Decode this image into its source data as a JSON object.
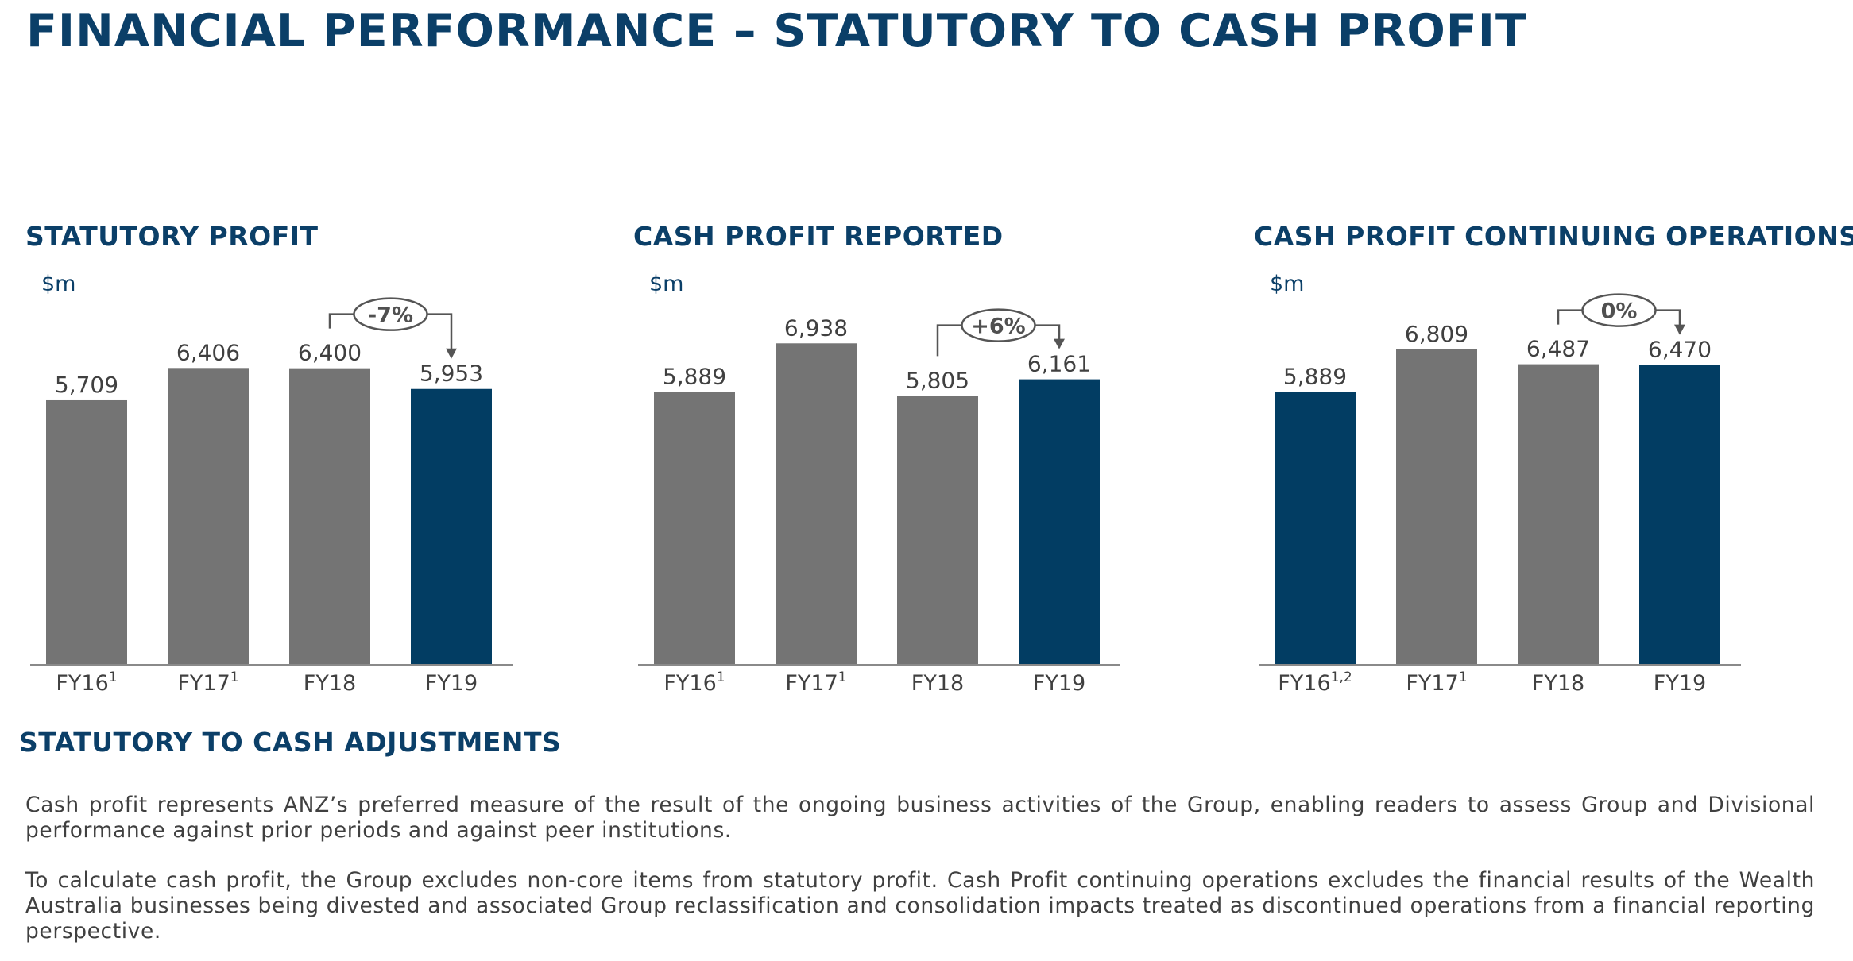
{
  "title": "FINANCIAL PERFORMANCE – STATUTORY TO CASH PROFIT",
  "colors": {
    "navy": "#023d63",
    "grey": "#747474",
    "text": "#404040",
    "heading": "#0b3f68"
  },
  "chart_data": [
    {
      "type": "bar",
      "title": "STATUTORY PROFIT",
      "ylabel": "$m",
      "ylim": [
        0,
        7200
      ],
      "categories": [
        "FY16",
        "FY17",
        "FY18",
        "FY19"
      ],
      "category_superscripts": [
        "1",
        "1",
        "",
        ""
      ],
      "values": [
        5709,
        6406,
        6400,
        5953
      ],
      "value_labels": [
        "5,709",
        "6,406",
        "6,400",
        "5,953"
      ],
      "highlighted": [
        false,
        false,
        false,
        true
      ],
      "change": {
        "label": "-7%",
        "from": 2,
        "to": 3
      }
    },
    {
      "type": "bar",
      "title": "CASH PROFIT REPORTED",
      "ylabel": "$m",
      "ylim": [
        0,
        7200
      ],
      "categories": [
        "FY16",
        "FY17",
        "FY18",
        "FY19"
      ],
      "category_superscripts": [
        "1",
        "1",
        "",
        ""
      ],
      "values": [
        5889,
        6938,
        5805,
        6161
      ],
      "value_labels": [
        "5,889",
        "6,938",
        "5,805",
        "6,161"
      ],
      "highlighted": [
        false,
        false,
        false,
        true
      ],
      "change": {
        "label": "+6%",
        "from": 2,
        "to": 3
      }
    },
    {
      "type": "bar",
      "title": "CASH PROFIT CONTINUING OPERATIONS",
      "ylabel": "$m",
      "ylim": [
        0,
        7200
      ],
      "categories": [
        "FY16",
        "FY17",
        "FY18",
        "FY19"
      ],
      "category_superscripts": [
        "1,2",
        "1",
        "",
        ""
      ],
      "values": [
        5889,
        6809,
        6487,
        6470
      ],
      "value_labels": [
        "5,889",
        "6,809",
        "6,487",
        "6,470"
      ],
      "highlighted": [
        true,
        false,
        false,
        true
      ],
      "change": {
        "label": "0%",
        "from": 2,
        "to": 3
      }
    }
  ],
  "adjustments": {
    "title": "STATUTORY TO CASH ADJUSTMENTS",
    "paragraphs": [
      "Cash profit represents ANZ’s preferred measure of the result of the ongoing business activities of the Group, enabling readers to assess Group and Divisional performance against prior periods and against peer institutions.",
      "To calculate cash profit, the Group excludes non-core items from statutory profit. Cash Profit continuing operations excludes the financial results of the Wealth Australia businesses being divested and associated Group reclassification and consolidation impacts treated as discontinued operations from a financial reporting perspective."
    ]
  }
}
